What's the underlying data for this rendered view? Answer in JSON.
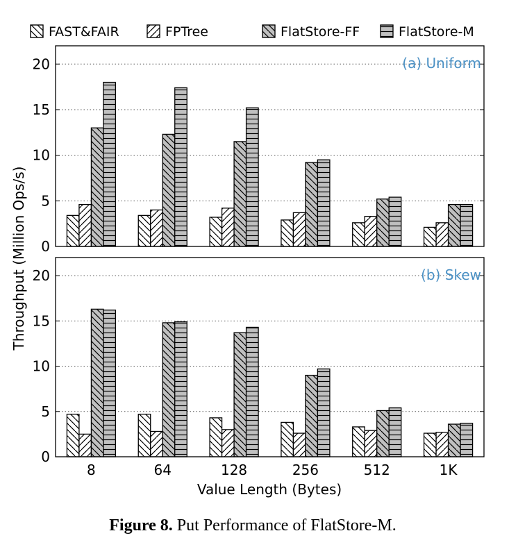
{
  "chart_data": {
    "type": "bar",
    "categories": [
      "8",
      "64",
      "128",
      "256",
      "512",
      "1K"
    ],
    "xlabel": "Value Length (Bytes)",
    "ylabel": "Throughput (Million Ops/s)",
    "ylim": [
      0,
      22
    ],
    "yticks": [
      "0",
      "5",
      "10",
      "15",
      "20"
    ],
    "grid": true,
    "legend": [
      "FAST&FAIR",
      "FPTree",
      "FlatStore-FF",
      "FlatStore-M"
    ],
    "legend_position": "top",
    "series_styles": [
      {
        "name": "FAST&FAIR",
        "fill": "#ffffff",
        "pattern": "back-diagonal"
      },
      {
        "name": "FPTree",
        "fill": "#ffffff",
        "pattern": "forward-diagonal"
      },
      {
        "name": "FlatStore-FF",
        "fill": "#c0c0c0",
        "pattern": "back-diagonal"
      },
      {
        "name": "FlatStore-M",
        "fill": "#c0c0c0",
        "pattern": "horizontal"
      }
    ],
    "panels": [
      {
        "title": "(a) Uniform",
        "title_color": "#4a90c4",
        "series": [
          {
            "name": "FAST&FAIR",
            "values": [
              3.4,
              3.4,
              3.2,
              2.9,
              2.6,
              2.1
            ]
          },
          {
            "name": "FPTree",
            "values": [
              4.6,
              4.0,
              4.2,
              3.7,
              3.3,
              2.6
            ]
          },
          {
            "name": "FlatStore-FF",
            "values": [
              13.0,
              12.3,
              11.5,
              9.2,
              5.2,
              4.6
            ]
          },
          {
            "name": "FlatStore-M",
            "values": [
              18.0,
              17.4,
              15.2,
              9.5,
              5.4,
              4.6
            ]
          }
        ]
      },
      {
        "title": "(b) Skew",
        "title_color": "#4a90c4",
        "series": [
          {
            "name": "FAST&FAIR",
            "values": [
              4.7,
              4.7,
              4.3,
              3.8,
              3.3,
              2.6
            ]
          },
          {
            "name": "FPTree",
            "values": [
              2.5,
              2.8,
              3.0,
              2.6,
              2.9,
              2.7
            ]
          },
          {
            "name": "FlatStore-FF",
            "values": [
              16.3,
              14.8,
              13.7,
              9.0,
              5.1,
              3.6
            ]
          },
          {
            "name": "FlatStore-M",
            "values": [
              16.2,
              14.9,
              14.3,
              9.7,
              5.4,
              3.7
            ]
          }
        ]
      }
    ]
  },
  "caption": {
    "label": "Figure 8.",
    "text": " Put Performance of FlatStore-M."
  }
}
